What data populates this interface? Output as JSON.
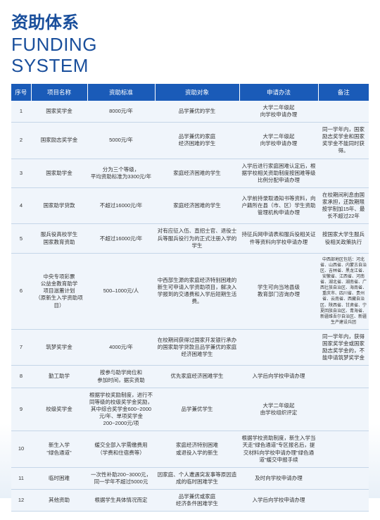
{
  "title_cn": "资助体系",
  "title_en_line1": "FUNDING",
  "title_en_line2": "SYSTEM",
  "headers": [
    "序号",
    "项目名称",
    "资助标准",
    "资助对象",
    "申请办法",
    "备注"
  ],
  "colors": {
    "brand": "#1a4f9c",
    "header_bg": "#1a5bb8",
    "row_bg": "#f0f5fb",
    "border": "#c5d6e8"
  },
  "rows": [
    {
      "n": "1",
      "name": "国家奖学金",
      "std": "8000元/年",
      "target": "品学兼优的学生",
      "apply": "大学二年级起\n向学校申请办理",
      "note": ""
    },
    {
      "n": "2",
      "name": "国家励志奖学金",
      "std": "5000元/年",
      "target": "品学兼优的家庭\n经济困难的学生",
      "apply": "大学二年级起\n向学校申请办理",
      "note": "同一学年内，国家励志奖学金和国家奖学金不能同时获得。"
    },
    {
      "n": "3",
      "name": "国家助学金",
      "std": "分为三个等级，\n平均资助标准为3300元/年",
      "target": "家庭经济困难的学生",
      "apply": "入学后进行家庭困难认定后，根据学校相关资助制度按困难等级比例分配申请办理",
      "note": ""
    },
    {
      "n": "4",
      "name": "国家助学贷款",
      "std": "不超过16000元/年",
      "target": "家庭经济困难的学生",
      "apply": "入学前持录取通知书等资料，向户籍所在县（市、区）学生资助管理机构申请办理",
      "note": "在校期间利息由国家承担，还款期限按学制加15年、最长不超过22年"
    },
    {
      "n": "5",
      "name": "服兵役高校学生\n国家教育资助",
      "std": "不超过16000元/年",
      "target": "对有应征入伍、直招士官、退役士兵等服兵役行为的正式注册入学的学生",
      "apply": "持征兵网申请表和服兵役相关证件等资料向学校申请办理",
      "note": "按国家大学生服兵役相关政策执行"
    },
    {
      "n": "6",
      "name": "中央专项彩票\n公益金教育助学\n项目滋蕙计划\n（原新生入学资助项目）",
      "std": "500–1000元/人",
      "target": "中西部生源的家庭经济特别困难的新生可申请入学资助项目，解决入学报到的交通费和入学后短期生活费。",
      "apply": "学生可向当地县级\n教育部门咨询办理",
      "note": "中西部地区包括：河北省、山西省、内蒙古自治区、吉林省、黑龙江省、安徽省、江西省、河南省、湖北省、湖南省、广西壮族自治区、海南省、重庆市、四川省、贵州省、云南省、西藏自治区、陕西省、甘肃省、宁夏回族自治区、青海省、新疆维吾尔自治区、新疆生产建设兵团"
    },
    {
      "n": "7",
      "name": "筑梦奖学金",
      "std": "4000元/年",
      "target": "在校期间获得过国家开发银行承办的国家助学贷款且品学兼优的家庭经济困难学生",
      "apply": "",
      "note": "同一学年内，获得国家奖学金或国家励志奖学金的，不能申请筑梦奖学金"
    },
    {
      "n": "8",
      "name": "勤工助学",
      "std": "按参与助学岗位和\n参加时间，据实资助",
      "target": "优先家庭经济困难学生",
      "apply": "入学后向学校申请办理",
      "note": ""
    },
    {
      "n": "9",
      "name": "校级奖学金",
      "std": "根据学校奖励制度，进行不同等级的校级奖学金奖励，其中综合奖学金600~2000元/年、单项奖学金200~2000元/项",
      "target": "品学兼优学生",
      "apply": "大学二年级起\n由学校组织评定",
      "note": ""
    },
    {
      "n": "10",
      "name": "新生入学\n\"绿色通道\"",
      "std": "缓交全部入学需缴费用\n（学费和住宿费等）",
      "target": "家庭经济特别困难\n或退役入学的新生",
      "apply": "根据学校资助制度，新生入学当天走\"绿色通道\"专区报名后，提交材料向学校申请办理\"绿色通道\"缓交申报手续",
      "note": ""
    },
    {
      "n": "11",
      "name": "临时困难",
      "std": "一次性补助200~3000元，\n同一学年不超过5000元",
      "target": "因家庭、个人遭遇突发事等原因造成的临时困难学生",
      "apply": "及时向学校申请办理",
      "note": ""
    },
    {
      "n": "12",
      "name": "其他资助",
      "std": "根据学生具体情况而定",
      "target": "品学兼优或家庭\n经济条件困难学生",
      "apply": "入学后向学校申请办理",
      "note": ""
    }
  ]
}
